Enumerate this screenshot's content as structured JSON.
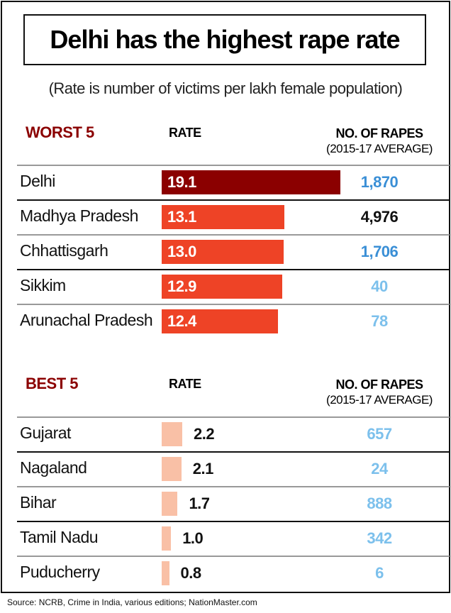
{
  "chart_data": {
    "type": "bar",
    "title": "Delhi has the highest rape rate",
    "subtitle": "(Rate is number of victims per lakh female population)",
    "sections": [
      {
        "label": "WORST 5",
        "rate_header": "RATE",
        "count_header": "NO. OF RAPES",
        "count_subheader": "(2015-17 AVERAGE)",
        "rows": [
          {
            "state": "Delhi",
            "rate": 19.1,
            "rate_label": "19.1",
            "count": "1,870",
            "bar_color": "#8b0000",
            "count_color": "#3a8fd6"
          },
          {
            "state": "Madhya Pradesh",
            "rate": 13.1,
            "rate_label": "13.1",
            "count": "4,976",
            "bar_color": "#ee4326",
            "count_color": "#111111"
          },
          {
            "state": "Chhattisgarh",
            "rate": 13.0,
            "rate_label": "13.0",
            "count": "1,706",
            "bar_color": "#ee4326",
            "count_color": "#3a8fd6"
          },
          {
            "state": "Sikkim",
            "rate": 12.9,
            "rate_label": "12.9",
            "count": "40",
            "bar_color": "#ee4326",
            "count_color": "#7cc0ec"
          },
          {
            "state": "Arunachal Pradesh",
            "rate": 12.4,
            "rate_label": "12.4",
            "count": "78",
            "bar_color": "#ee4326",
            "count_color": "#7cc0ec"
          }
        ]
      },
      {
        "label": "BEST 5",
        "rate_header": "RATE",
        "count_header": "NO. OF RAPES",
        "count_subheader": "(2015-17 AVERAGE)",
        "rows": [
          {
            "state": "Gujarat",
            "rate": 2.2,
            "rate_label": "2.2",
            "count": "657",
            "bar_color": "#f9c0a6",
            "count_color": "#7cc0ec"
          },
          {
            "state": "Nagaland",
            "rate": 2.1,
            "rate_label": "2.1",
            "count": "24",
            "bar_color": "#f9c0a6",
            "count_color": "#7cc0ec"
          },
          {
            "state": "Bihar",
            "rate": 1.7,
            "rate_label": "1.7",
            "count": "888",
            "bar_color": "#f9c0a6",
            "count_color": "#7cc0ec"
          },
          {
            "state": "Tamil Nadu",
            "rate": 1.0,
            "rate_label": "1.0",
            "count": "342",
            "bar_color": "#f9c0a6",
            "count_color": "#7cc0ec"
          },
          {
            "state": "Puducherry",
            "rate": 0.8,
            "rate_label": "0.8",
            "count": "6",
            "bar_color": "#f9c0a6",
            "count_color": "#7cc0ec"
          }
        ]
      }
    ],
    "source": "Source: NCRB, Crime in India, various editions; NationMaster.com"
  }
}
